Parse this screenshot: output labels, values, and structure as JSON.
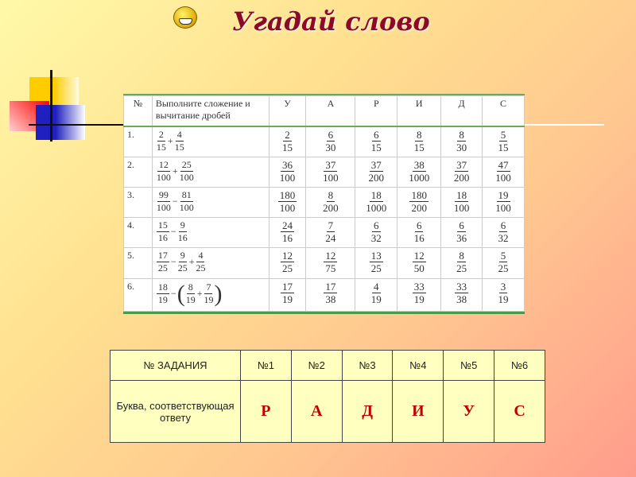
{
  "title": "Угадай слово",
  "task_table": {
    "headers": [
      "№",
      "Выполните сложение и вычитание дробей",
      "У",
      "А",
      "Р",
      "И",
      "Д",
      "С"
    ],
    "rows": [
      {
        "num": "1.",
        "expr": [
          {
            "f": [
              "2",
              "15"
            ]
          },
          {
            "op": "+"
          },
          {
            "f": [
              "4",
              "15"
            ]
          }
        ],
        "answers": [
          [
            "2",
            "15"
          ],
          [
            "6",
            "30"
          ],
          [
            "6",
            "15"
          ],
          [
            "8",
            "15"
          ],
          [
            "8",
            "30"
          ],
          [
            "5",
            "15"
          ]
        ]
      },
      {
        "num": "2.",
        "expr": [
          {
            "f": [
              "12",
              "100"
            ]
          },
          {
            "op": "+"
          },
          {
            "f": [
              "25",
              "100"
            ]
          }
        ],
        "answers": [
          [
            "36",
            "100"
          ],
          [
            "37",
            "100"
          ],
          [
            "37",
            "200"
          ],
          [
            "38",
            "1000"
          ],
          [
            "37",
            "200"
          ],
          [
            "47",
            "100"
          ]
        ]
      },
      {
        "num": "3.",
        "expr": [
          {
            "f": [
              "99",
              "100"
            ]
          },
          {
            "op": "−"
          },
          {
            "f": [
              "81",
              "100"
            ]
          }
        ],
        "answers": [
          [
            "180",
            "100"
          ],
          [
            "8",
            "200"
          ],
          [
            "18",
            "1000"
          ],
          [
            "180",
            "200"
          ],
          [
            "18",
            "100"
          ],
          [
            "19",
            "100"
          ]
        ]
      },
      {
        "num": "4.",
        "expr": [
          {
            "f": [
              "15",
              "16"
            ]
          },
          {
            "op": "−"
          },
          {
            "f": [
              "9",
              "16"
            ]
          }
        ],
        "answers": [
          [
            "24",
            "16"
          ],
          [
            "7",
            "24"
          ],
          [
            "6",
            "32"
          ],
          [
            "6",
            "16"
          ],
          [
            "6",
            "36"
          ],
          [
            "6",
            "32"
          ]
        ]
      },
      {
        "num": "5.",
        "expr": [
          {
            "f": [
              "17",
              "25"
            ]
          },
          {
            "op": "−"
          },
          {
            "f": [
              "9",
              "25"
            ]
          },
          {
            "op": "+"
          },
          {
            "f": [
              "4",
              "25"
            ]
          }
        ],
        "answers": [
          [
            "12",
            "25"
          ],
          [
            "12",
            "75"
          ],
          [
            "13",
            "25"
          ],
          [
            "12",
            "50"
          ],
          [
            "8",
            "25"
          ],
          [
            "5",
            "25"
          ]
        ]
      },
      {
        "num": "6.",
        "expr": [
          {
            "f": [
              "18",
              "19"
            ]
          },
          {
            "op": "−"
          },
          {
            "par": "("
          },
          {
            "f": [
              "8",
              "19"
            ]
          },
          {
            "op": "+"
          },
          {
            "f": [
              "7",
              "19"
            ]
          },
          {
            "par": ")"
          }
        ],
        "answers": [
          [
            "17",
            "19"
          ],
          [
            "17",
            "38"
          ],
          [
            "4",
            "19"
          ],
          [
            "33",
            "19"
          ],
          [
            "33",
            "38"
          ],
          [
            "3",
            "19"
          ]
        ]
      }
    ]
  },
  "answer_table": {
    "header_label": "№ ЗАДАНИЯ",
    "tasks": [
      "№1",
      "№2",
      "№3",
      "№4",
      "№5",
      "№6"
    ],
    "row_label": "Буква, соответствующая ответу",
    "letters": [
      "Р",
      "А",
      "Д",
      "И",
      "У",
      "С"
    ],
    "letter_color": "#c00000"
  }
}
